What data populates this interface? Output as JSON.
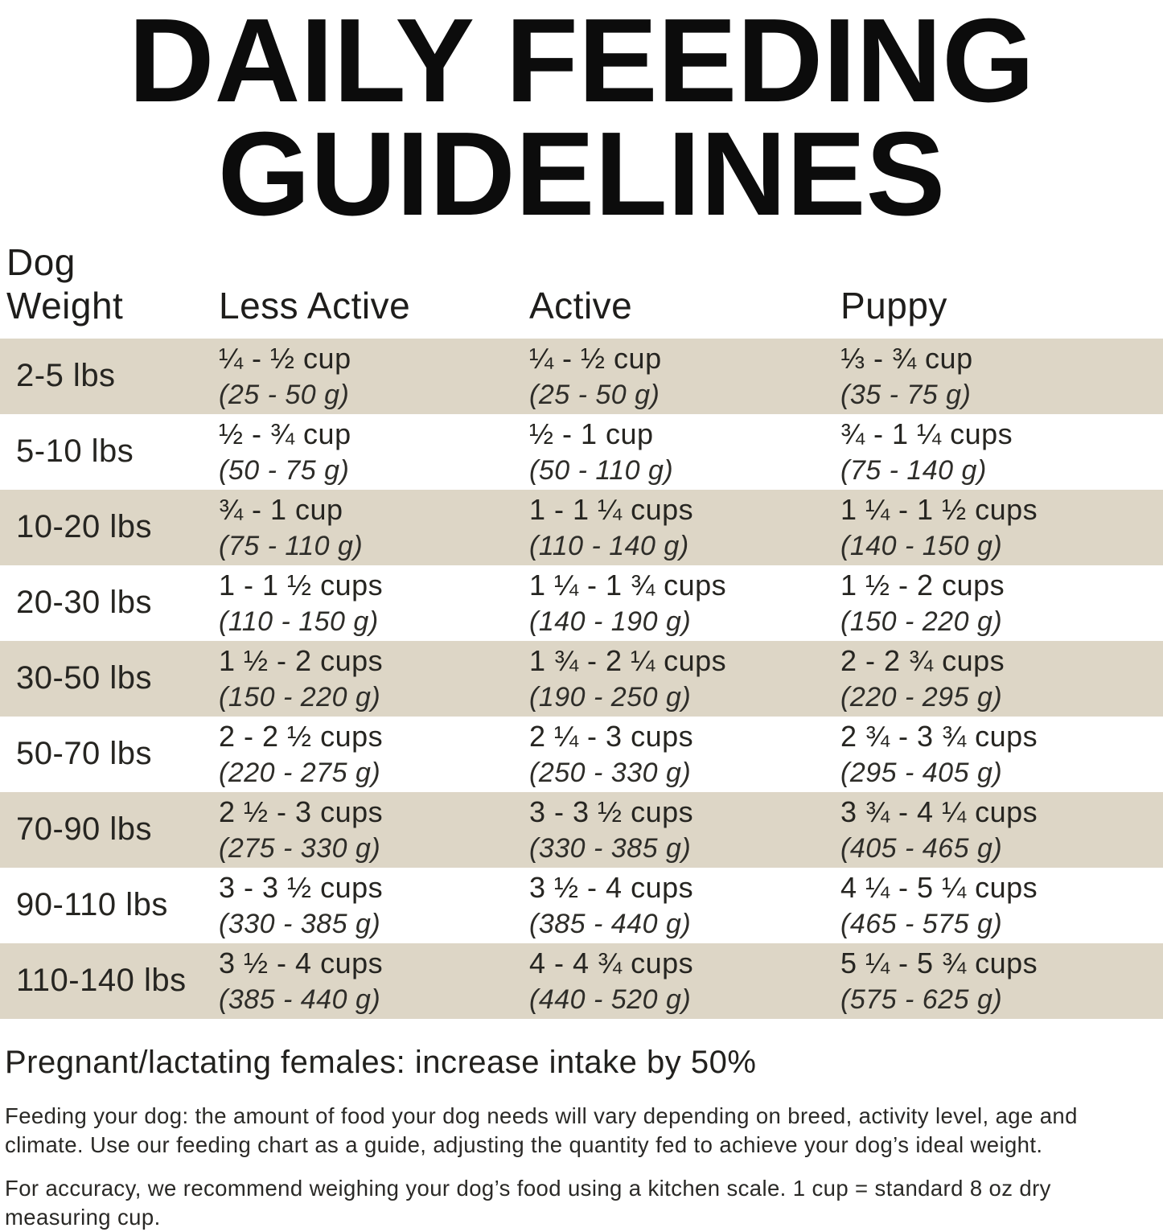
{
  "colors": {
    "row_shade": "#ddd6c6",
    "text": "#2c2b28",
    "title": "#0c0c0c",
    "background": "#ffffff"
  },
  "title": {
    "line1": "DAILY FEEDING",
    "line2": "GUIDELINES"
  },
  "table": {
    "headers": {
      "weight_line1": "Dog",
      "weight_line2": "Weight",
      "less_active": "Less Active",
      "active": "Active",
      "puppy": "Puppy"
    },
    "rows": [
      {
        "weight": "2-5 lbs",
        "less_active": {
          "cups": "¼ - ½ cup",
          "grams": "(25 - 50 g)"
        },
        "active": {
          "cups": "¼ - ½ cup",
          "grams": "(25 - 50 g)"
        },
        "puppy": {
          "cups": "⅓ - ¾ cup",
          "grams": "(35 - 75 g)"
        }
      },
      {
        "weight": "5-10 lbs",
        "less_active": {
          "cups": "½ - ¾ cup",
          "grams": "(50 - 75 g)"
        },
        "active": {
          "cups": "½ - 1 cup",
          "grams": "(50 - 110 g)"
        },
        "puppy": {
          "cups": "¾ - 1 ¼ cups",
          "grams": "(75 - 140 g)"
        }
      },
      {
        "weight": "10-20 lbs",
        "less_active": {
          "cups": "¾ - 1 cup",
          "grams": "(75 - 110 g)"
        },
        "active": {
          "cups": "1 - 1 ¼ cups",
          "grams": "(110 - 140 g)"
        },
        "puppy": {
          "cups": "1 ¼ - 1 ½ cups",
          "grams": "(140 - 150 g)"
        }
      },
      {
        "weight": "20-30 lbs",
        "less_active": {
          "cups": "1 - 1 ½ cups",
          "grams": "(110 - 150 g)"
        },
        "active": {
          "cups": "1 ¼ - 1 ¾ cups",
          "grams": "(140 - 190 g)"
        },
        "puppy": {
          "cups": "1 ½ - 2 cups",
          "grams": "(150 - 220 g)"
        }
      },
      {
        "weight": "30-50 lbs",
        "less_active": {
          "cups": "1 ½ - 2 cups",
          "grams": "(150 - 220 g)"
        },
        "active": {
          "cups": "1 ¾ - 2 ¼ cups",
          "grams": "(190 - 250 g)"
        },
        "puppy": {
          "cups": "2 - 2 ¾ cups",
          "grams": "(220 - 295 g)"
        }
      },
      {
        "weight": "50-70 lbs",
        "less_active": {
          "cups": "2 - 2 ½ cups",
          "grams": "(220 - 275 g)"
        },
        "active": {
          "cups": "2 ¼ - 3 cups",
          "grams": "(250 - 330 g)"
        },
        "puppy": {
          "cups": "2 ¾ - 3 ¾ cups",
          "grams": "(295 - 405 g)"
        }
      },
      {
        "weight": "70-90 lbs",
        "less_active": {
          "cups": "2 ½ - 3 cups",
          "grams": "(275 - 330 g)"
        },
        "active": {
          "cups": "3 - 3 ½ cups",
          "grams": "(330 - 385 g)"
        },
        "puppy": {
          "cups": "3 ¾ - 4 ¼ cups",
          "grams": "(405 - 465 g)"
        }
      },
      {
        "weight": "90-110 lbs",
        "less_active": {
          "cups": "3 - 3 ½ cups",
          "grams": "(330 - 385 g)"
        },
        "active": {
          "cups": "3 ½ - 4 cups",
          "grams": "(385 - 440 g)"
        },
        "puppy": {
          "cups": "4 ¼ - 5 ¼ cups",
          "grams": "(465 - 575 g)"
        }
      },
      {
        "weight": "110-140 lbs",
        "less_active": {
          "cups": "3 ½ - 4 cups",
          "grams": "(385 - 440 g)"
        },
        "active": {
          "cups": "4 - 4 ¾ cups",
          "grams": "(440 - 520 g)"
        },
        "puppy": {
          "cups": "5 ¼ - 5 ¾ cups",
          "grams": "(575 - 625 g)"
        }
      }
    ]
  },
  "notes": {
    "pregnant": "Pregnant/lactating females: increase intake by 50%",
    "feeding": "Feeding your dog: the amount of food your dog needs will vary depending on breed, activity level, age and climate. Use our feeding chart as a guide, adjusting the quantity fed to achieve your dog’s ideal weight.",
    "accuracy": "For accuracy, we recommend weighing your dog’s food using a kitchen scale. 1 cup = standard 8 oz dry measuring cup."
  }
}
